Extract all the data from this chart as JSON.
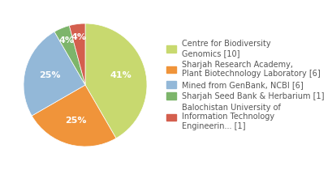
{
  "labels": [
    "Centre for Biodiversity\nGenomics [10]",
    "Sharjah Research Academy,\nPlant Biotechnology Laboratory [6]",
    "Mined from GenBank, NCBI [6]",
    "Sharjah Seed Bank & Herbarium [1]",
    "Balochistan University of\nInformation Technology\nEngineerin... [1]"
  ],
  "values": [
    10,
    6,
    6,
    1,
    1
  ],
  "colors": [
    "#c8d96f",
    "#f0943a",
    "#93b8d8",
    "#7db56b",
    "#d45f4e"
  ],
  "pct_labels": [
    "41%",
    "25%",
    "25%",
    "4%",
    "4%"
  ],
  "background_color": "#ffffff",
  "text_color": "#555555",
  "pct_fontsize": 8,
  "legend_fontsize": 7
}
